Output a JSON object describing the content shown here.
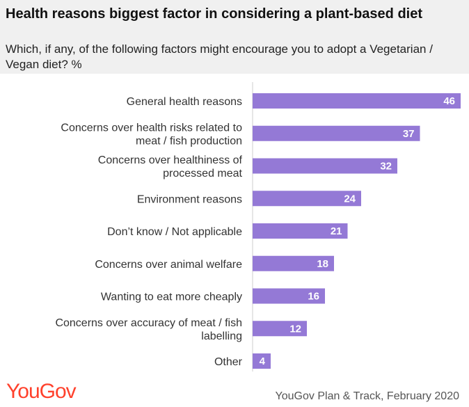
{
  "header": {
    "title": "Health reasons biggest factor in considering a plant-based diet",
    "subtitle": "Which, if any, of the following factors might encourage you to adopt a Vegetarian / Vegan diet? %"
  },
  "footer": {
    "logo": "YouGov",
    "source": "YouGov Plan & Track, February 2020"
  },
  "colors": {
    "bar": "#9479d6",
    "logo": "#ff412c",
    "header_bg": "#f0f0f0"
  },
  "chart_data": {
    "type": "bar",
    "orientation": "horizontal",
    "title": "Health reasons biggest factor in considering a plant-based diet",
    "subtitle": "Which, if any, of the following factors might encourage you to adopt a Vegetarian / Vegan diet? %",
    "categories": [
      [
        "General health reasons"
      ],
      [
        "Concerns over health risks related to",
        "meat / fish production"
      ],
      [
        "Concerns over healthiness of",
        "processed meat"
      ],
      [
        "Environment reasons"
      ],
      [
        "Don’t know / Not applicable"
      ],
      [
        "Concerns over animal welfare"
      ],
      [
        "Wanting to eat more cheaply"
      ],
      [
        "Concerns over accuracy of meat / fish",
        "labelling"
      ],
      [
        "Other"
      ]
    ],
    "values": [
      46,
      37,
      32,
      24,
      21,
      18,
      16,
      12,
      4
    ],
    "xlim": [
      0,
      46
    ],
    "grid": false,
    "legend": "none"
  }
}
